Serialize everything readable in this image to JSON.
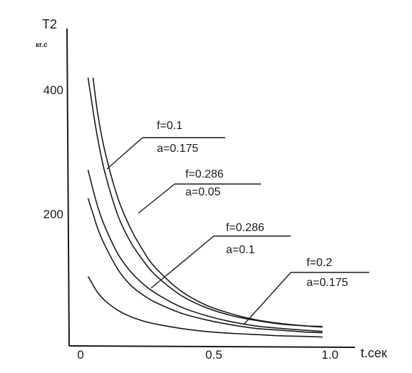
{
  "chart_data": {
    "type": "line",
    "ylabel": "T2",
    "yunit": "кг.с",
    "xlabel": "t.сек",
    "xlim": [
      0,
      1.0
    ],
    "ylim": [
      0,
      470
    ],
    "x_ticks": [
      "0",
      "0.5",
      "1.0"
    ],
    "y_ticks": [
      "200",
      "400"
    ],
    "grid": false,
    "series": [
      {
        "params": [
          "f=0.1",
          "a=0.175"
        ],
        "x": [
          0.03,
          0.05,
          0.07,
          0.1,
          0.15,
          0.2,
          0.25,
          0.3,
          0.4,
          0.5,
          0.6,
          0.7,
          0.8,
          0.9,
          0.97
        ],
        "y": [
          423,
          370,
          322,
          266,
          200,
          158,
          128,
          104,
          72,
          52,
          39,
          31,
          25,
          22,
          21
        ]
      },
      {
        "params": [
          "f=0.286",
          "a=0.05"
        ],
        "x": [
          0.05,
          0.07,
          0.1,
          0.15,
          0.2,
          0.25,
          0.3,
          0.4,
          0.5,
          0.6,
          0.7,
          0.8,
          0.9,
          0.97
        ],
        "y": [
          423,
          362,
          300,
          228,
          180,
          144,
          116,
          79,
          56,
          42,
          32,
          26,
          22,
          20
        ]
      },
      {
        "params": [
          "f=0.286",
          "a=0.1"
        ],
        "x": [
          0.03,
          0.05,
          0.07,
          0.1,
          0.15,
          0.2,
          0.25,
          0.3,
          0.4,
          0.5,
          0.6,
          0.7,
          0.8,
          0.9,
          0.97
        ],
        "y": [
          274,
          242,
          213,
          180,
          138,
          110,
          90,
          75,
          53,
          39,
          29,
          22,
          18,
          15,
          13
        ]
      },
      {
        "params": [
          "f=0.2",
          "a=0.175"
        ],
        "x": [
          0.03,
          0.05,
          0.07,
          0.1,
          0.15,
          0.2,
          0.25,
          0.3,
          0.4,
          0.5,
          0.6,
          0.7,
          0.8,
          0.9,
          0.97
        ],
        "y": [
          228,
          203,
          178,
          150,
          113,
          88,
          72,
          60,
          43,
          32,
          24,
          18,
          15,
          12,
          11
        ]
      },
      {
        "x": [
          0.03,
          0.05,
          0.07,
          0.1,
          0.15,
          0.2,
          0.25,
          0.3,
          0.4,
          0.5,
          0.6,
          0.7,
          0.8,
          0.9,
          0.97
        ],
        "y": [
          102,
          88,
          75,
          62,
          47,
          37,
          30,
          25,
          18,
          13,
          10,
          8,
          6,
          5,
          4
        ]
      }
    ],
    "annotations": [
      {
        "lines": [
          "f=0.1",
          "a=0.175"
        ]
      },
      {
        "lines": [
          "f=0.286",
          "a=0.05"
        ]
      },
      {
        "lines": [
          "f=0.286",
          "a=0.1"
        ]
      },
      {
        "lines": [
          "f=0.2",
          "a=0.175"
        ]
      }
    ]
  }
}
